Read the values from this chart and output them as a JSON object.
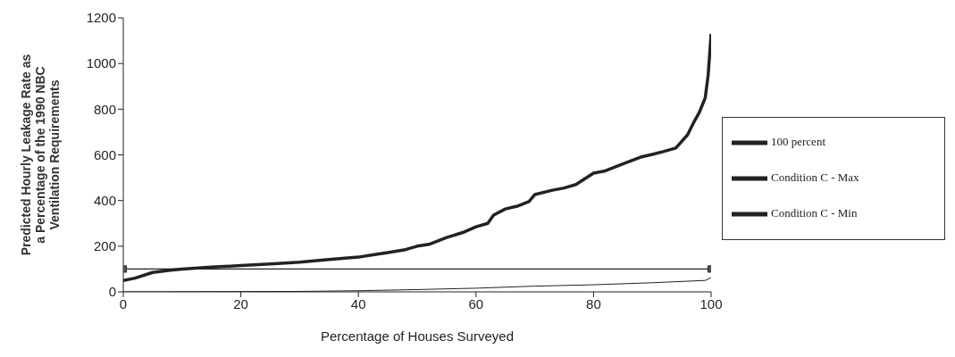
{
  "chart_data": {
    "type": "line",
    "xlabel": "Percentage of Houses Surveyed",
    "ylabel": "Predicted Hourly Leakage Rate as a Percentage of the 1990 NBC Ventilation Requirements",
    "xlim": [
      0,
      100
    ],
    "ylim": [
      0,
      1200
    ],
    "xticks": [
      0,
      20,
      40,
      60,
      80,
      100
    ],
    "yticks": [
      0,
      200,
      400,
      600,
      800,
      1000,
      1200
    ],
    "legend": "right",
    "line_style": "solid",
    "series": [
      {
        "name": "100 percent",
        "color": "#222222",
        "marker": "square",
        "x": [
          0,
          100
        ],
        "values": [
          100,
          100
        ]
      },
      {
        "name": "Condition C - Max",
        "color": "#222222",
        "marker": "none",
        "x": [
          0,
          2,
          5,
          8,
          10,
          15,
          20,
          25,
          30,
          35,
          40,
          42,
          45,
          48,
          50,
          52,
          55,
          58,
          60,
          62,
          63,
          65,
          67,
          69,
          70,
          73,
          75,
          77,
          80,
          82,
          85,
          88,
          90,
          92,
          94,
          96,
          97,
          98,
          99,
          99.5,
          100
        ],
        "values": [
          50,
          60,
          85,
          95,
          100,
          108,
          115,
          122,
          130,
          142,
          152,
          160,
          172,
          185,
          200,
          208,
          238,
          262,
          285,
          300,
          336,
          363,
          375,
          395,
          426,
          445,
          455,
          470,
          520,
          530,
          560,
          590,
          602,
          615,
          630,
          688,
          740,
          786,
          850,
          950,
          1130
        ]
      },
      {
        "name": "Condition C - Min",
        "color": "#222222",
        "marker": "none",
        "x": [
          0,
          30,
          40,
          50,
          60,
          70,
          80,
          90,
          99,
          100
        ],
        "values": [
          0,
          2,
          5,
          10,
          16,
          25,
          31,
          40,
          50,
          62
        ]
      }
    ]
  }
}
